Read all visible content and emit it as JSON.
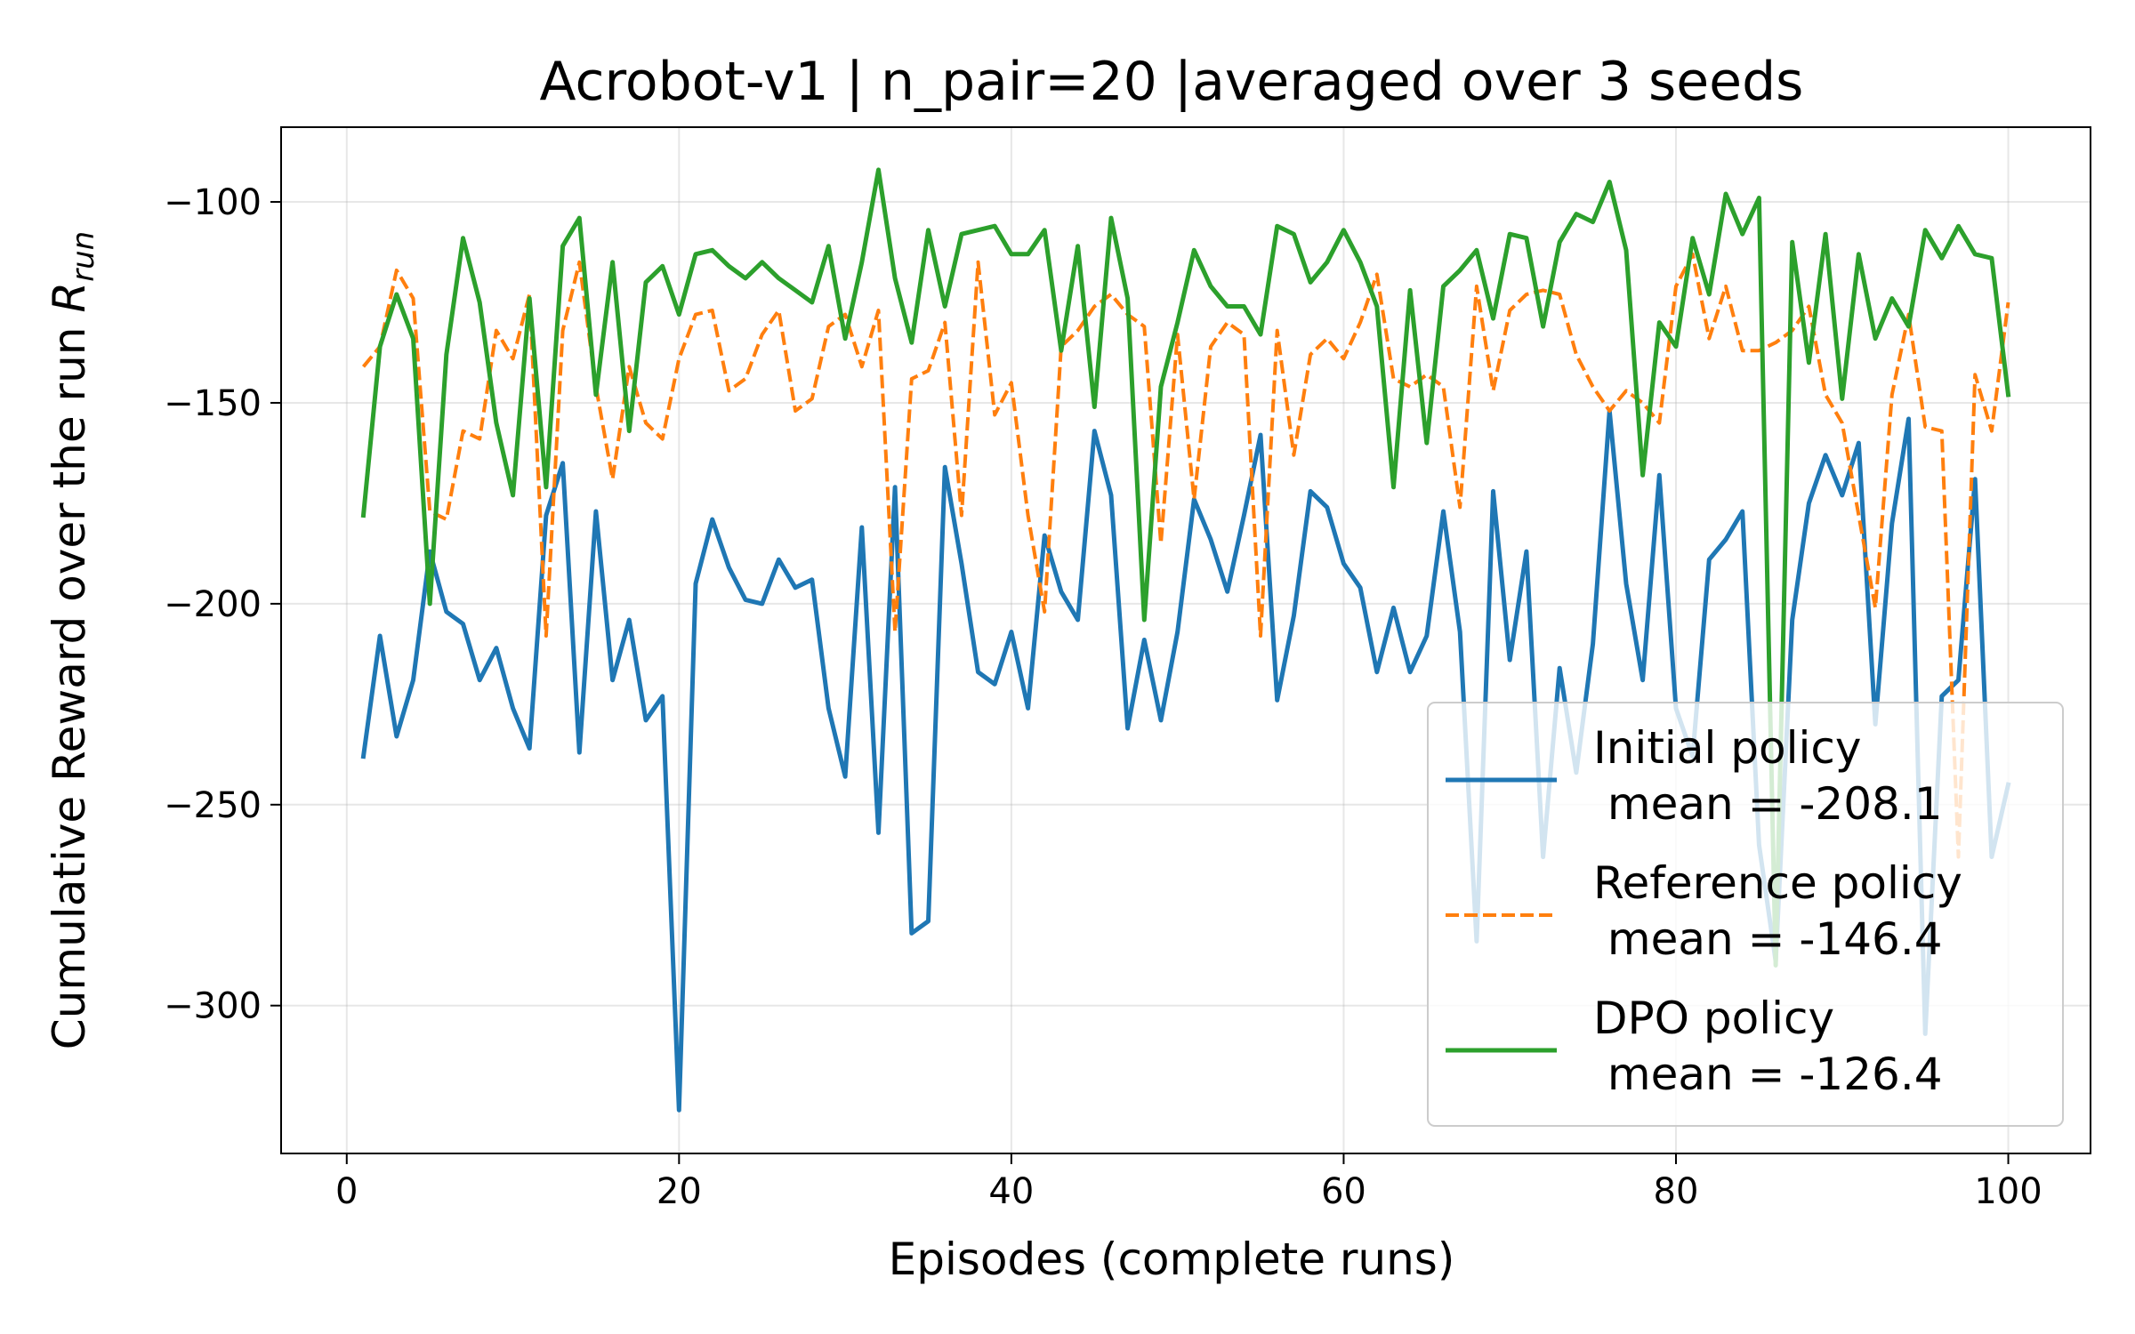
{
  "chart_data": {
    "type": "line",
    "title": "Acrobot-v1 | n_pair=20 |averaged over 3 seeds",
    "xlabel": "Episodes (complete runs)",
    "ylabel_main": "Cumulative Reward over the run ",
    "ylabel_symbol": "R",
    "ylabel_subscript": "run",
    "xlim": [
      -3.95,
      104.95
    ],
    "ylim": [
      -336.8,
      -81.4
    ],
    "xticks": [
      0,
      20,
      40,
      60,
      80,
      100
    ],
    "yticks": [
      -100,
      -150,
      -200,
      -250,
      -300
    ],
    "xtick_labels": [
      "0",
      "20",
      "40",
      "60",
      "80",
      "100"
    ],
    "ytick_labels": [
      "−100",
      "−150",
      "−200",
      "−250",
      "−300"
    ],
    "grid": true,
    "legend_position": "lower-right",
    "x": [
      1,
      2,
      3,
      4,
      5,
      6,
      7,
      8,
      9,
      10,
      11,
      12,
      13,
      14,
      15,
      16,
      17,
      18,
      19,
      20,
      21,
      22,
      23,
      24,
      25,
      26,
      27,
      28,
      29,
      30,
      31,
      32,
      33,
      34,
      35,
      36,
      37,
      38,
      39,
      40,
      41,
      42,
      43,
      44,
      45,
      46,
      47,
      48,
      49,
      50,
      51,
      52,
      53,
      54,
      55,
      56,
      57,
      58,
      59,
      60,
      61,
      62,
      63,
      64,
      65,
      66,
      67,
      68,
      69,
      70,
      71,
      72,
      73,
      74,
      75,
      76,
      77,
      78,
      79,
      80,
      81,
      82,
      83,
      84,
      85,
      86,
      87,
      88,
      89,
      90,
      91,
      92,
      93,
      94,
      95,
      96,
      97,
      98,
      99,
      100
    ],
    "series": [
      {
        "name": "Initial policy",
        "legend_line1": "Initial policy",
        "legend_line2": " mean = -208.1",
        "color": "#1f77b4",
        "dash": "solid",
        "values": [
          -238,
          -208,
          -233,
          -219,
          -187,
          -202,
          -205,
          -219,
          -211,
          -226,
          -236,
          -178,
          -165,
          -237,
          -177,
          -219,
          -204,
          -229,
          -223,
          -326,
          -195,
          -179,
          -191,
          -199,
          -200,
          -189,
          -196,
          -194,
          -226,
          -243,
          -181,
          -257,
          -171,
          -282,
          -279,
          -166,
          -190,
          -217,
          -220,
          -207,
          -226,
          -183,
          -197,
          -204,
          -157,
          -173,
          -231,
          -209,
          -229,
          -207,
          -174,
          -184,
          -197,
          -178,
          -158,
          -224,
          -203,
          -172,
          -176,
          -190,
          -196,
          -217,
          -201,
          -217,
          -208,
          -177,
          -207,
          -284,
          -172,
          -214,
          -187,
          -263,
          -216,
          -242,
          -210,
          -152,
          -195,
          -219,
          -168,
          -226,
          -238,
          -189,
          -184,
          -177,
          -260,
          -289,
          -204,
          -175,
          -163,
          -173,
          -160,
          -230,
          -180,
          -154,
          -307,
          -223,
          -219,
          -169,
          -263,
          -245
        ]
      },
      {
        "name": "Reference policy",
        "legend_line1": "Reference policy",
        "legend_line2": " mean = -146.4",
        "color": "#ff7f0e",
        "dash": "dashed",
        "values": [
          -141,
          -136,
          -117,
          -124,
          -177,
          -179,
          -157,
          -159,
          -132,
          -139,
          -123,
          -208,
          -132,
          -115,
          -146,
          -169,
          -141,
          -155,
          -159,
          -139,
          -128,
          -127,
          -147,
          -144,
          -133,
          -127,
          -152,
          -149,
          -131,
          -128,
          -141,
          -127,
          -207,
          -144,
          -142,
          -130,
          -178,
          -115,
          -153,
          -145,
          -178,
          -202,
          -136,
          -132,
          -126,
          -123,
          -128,
          -131,
          -185,
          -133,
          -174,
          -136,
          -130,
          -133,
          -208,
          -132,
          -163,
          -138,
          -134,
          -139,
          -130,
          -118,
          -144,
          -146,
          -143,
          -146,
          -176,
          -121,
          -147,
          -127,
          -123,
          -122,
          -123,
          -138,
          -146,
          -152,
          -147,
          -150,
          -155,
          -121,
          -113,
          -134,
          -121,
          -137,
          -137,
          -135,
          -132,
          -126,
          -148,
          -155,
          -178,
          -201,
          -148,
          -128,
          -156,
          -157,
          -263,
          -143,
          -157,
          -125
        ]
      },
      {
        "name": "DPO policy",
        "legend_line1": "DPO policy",
        "legend_line2": " mean = -126.4",
        "color": "#2ca02c",
        "dash": "solid",
        "values": [
          -178,
          -136,
          -123,
          -134,
          -200,
          -138,
          -109,
          -125,
          -155,
          -173,
          -124,
          -171,
          -111,
          -104,
          -148,
          -115,
          -157,
          -120,
          -116,
          -128,
          -113,
          -112,
          -116,
          -119,
          -115,
          -119,
          -122,
          -125,
          -111,
          -134,
          -115,
          -92,
          -119,
          -135,
          -107,
          -126,
          -108,
          -107,
          -106,
          -113,
          -113,
          -107,
          -137,
          -111,
          -151,
          -104,
          -124,
          -204,
          -146,
          -130,
          -112,
          -121,
          -126,
          -126,
          -133,
          -106,
          -108,
          -120,
          -115,
          -107,
          -115,
          -126,
          -171,
          -122,
          -160,
          -121,
          -117,
          -112,
          -129,
          -108,
          -109,
          -131,
          -110,
          -103,
          -105,
          -95,
          -112,
          -168,
          -130,
          -136,
          -109,
          -123,
          -98,
          -108,
          -99,
          -290,
          -110,
          -140,
          -108,
          -149,
          -113,
          -134,
          -124,
          -131,
          -107,
          -114,
          -106,
          -113,
          -114,
          -148
        ]
      }
    ]
  }
}
